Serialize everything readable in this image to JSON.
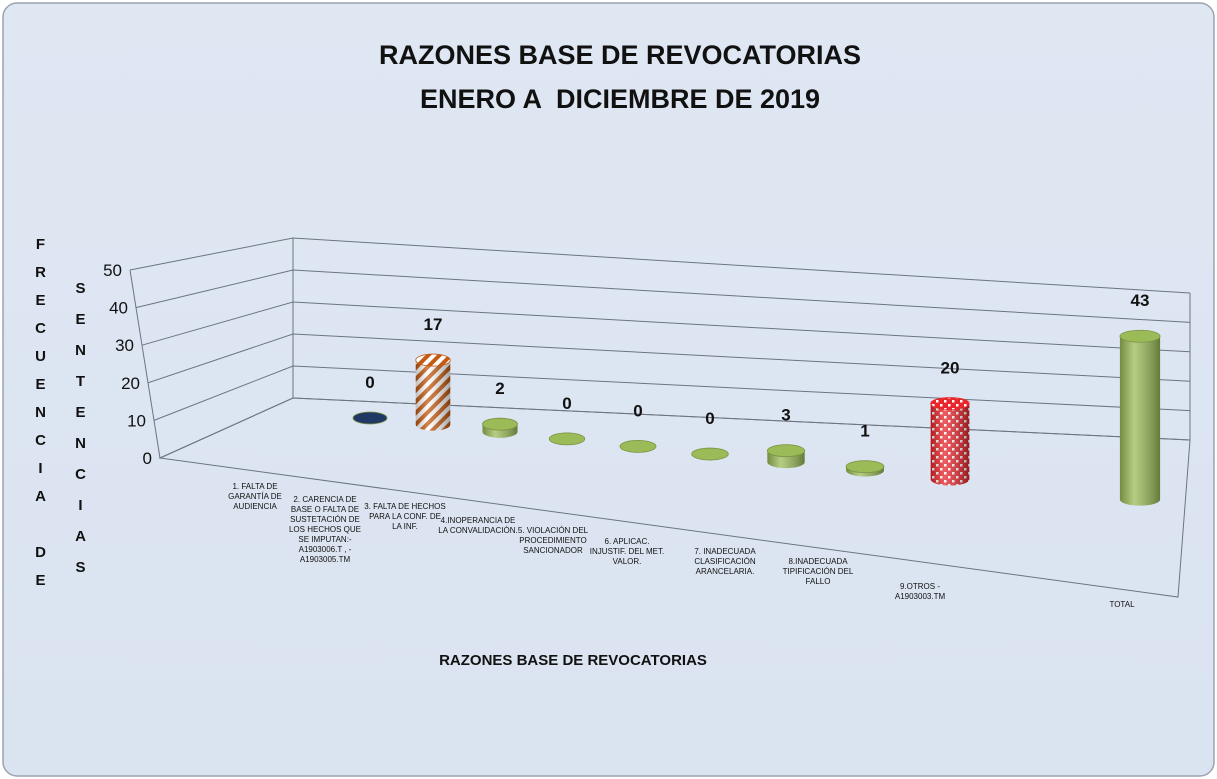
{
  "chart_data": {
    "type": "bar3d",
    "title": "RAZONES BASE DE REVOCATORIAS",
    "subtitle": "ENERO A  DICIEMBRE DE 2019",
    "x_label": "RAZONES BASE DE REVOCATORIAS",
    "y_label": [
      "FRECUENCIA DE",
      "SENTENCIAS"
    ],
    "categories": [
      "1. FALTA DE GARANTÍA DE AUDIENCIA",
      "2. CARENCIA DE BASE O FALTA DE SUSTETACIÓN DE LOS HECHOS QUE SE IMPUTAN:- A1903006.T , - A1903005.TM",
      "3. FALTA DE HECHOS PARA LA CONF. DE LA INF.",
      "4.INOPERANCIA DE LA CONVALIDACIÓN.",
      "5. VIOLACIÓN DEL PROCEDIMIENTO SANCIONADOR",
      "6. APLICAC. INJUSTIF. DEL MET. VALOR.",
      "7. INADECUADA CLASIFICACIÓN ARANCELARIA.",
      "8.INADECUADA TIPIFICACIÓN DEL FALLO",
      "9.OTROS - A1903003.TM",
      "TOTAL"
    ],
    "values": [
      0,
      17,
      2,
      0,
      0,
      0,
      3,
      1,
      20,
      43
    ],
    "colors": [
      "#1f3864",
      "#c55a11",
      "#9bbb59",
      "#9bbb59",
      "#9bbb59",
      "#9bbb59",
      "#9bbb59",
      "#9bbb59",
      "#e8262b",
      "#9bbb59"
    ],
    "patterns": [
      null,
      "stripes",
      null,
      null,
      null,
      null,
      null,
      null,
      "checker",
      null
    ],
    "ylim": [
      0,
      50
    ],
    "yticks": [
      0,
      10,
      20,
      30,
      40,
      50
    ],
    "grid": true
  }
}
